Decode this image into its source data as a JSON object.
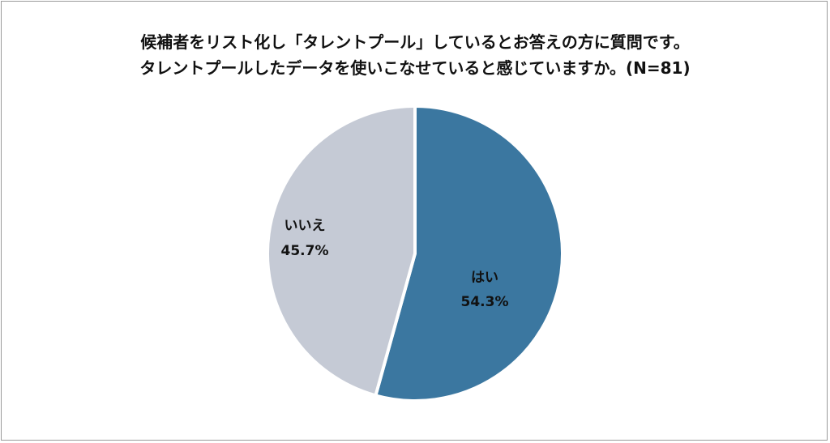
{
  "chart_data": {
    "type": "pie",
    "title_lines": [
      "候補者をリスト化し「タレントプール」しているとお答えの方に質問です。",
      "タレントプールしたデータを使いこなせていると感じていますか。(N=81)"
    ],
    "slices": [
      {
        "label": "はい",
        "value": 54.3,
        "value_label": "54.3%",
        "color": "#3b77a0"
      },
      {
        "label": "いいえ",
        "value": 45.7,
        "value_label": "45.7%",
        "color": "#c5cad5"
      }
    ],
    "start": "12 o'clock",
    "direction": "clockwise",
    "slice_separator_color": "#ffffff"
  }
}
